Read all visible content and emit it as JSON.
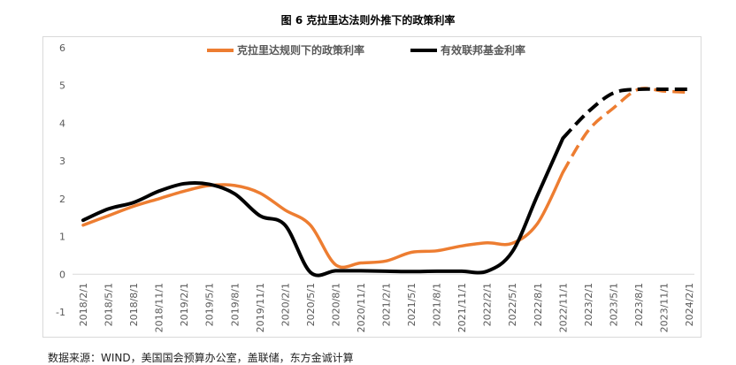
{
  "chart_data": {
    "type": "line",
    "title": "图 6  克拉里达法则外推下的政策利率",
    "xlabel": "",
    "ylabel": "",
    "ylim": [
      -1,
      6
    ],
    "y_ticks": [
      -1,
      0,
      1,
      2,
      3,
      4,
      5,
      6
    ],
    "x_tick_labels": [
      "2018/2/1",
      "2018/5/1",
      "2018/8/1",
      "2018/11/1",
      "2019/2/1",
      "2019/5/1",
      "2019/8/1",
      "2019/11/1",
      "2020/2/1",
      "2020/5/1",
      "2020/8/1",
      "2020/11/1",
      "2021/2/1",
      "2021/5/1",
      "2021/8/1",
      "2021/11/1",
      "2022/2/1",
      "2022/5/1",
      "2022/8/1",
      "2022/11/1",
      "2023/2/1",
      "2023/5/1",
      "2023/8/1",
      "2023/11/1",
      "2024/2/1"
    ],
    "grid": false,
    "legend_position": "top",
    "series": [
      {
        "name": "克拉里达规则下的政策利率",
        "color": "#ED7D31",
        "solid_until_index": 19,
        "values": [
          1.3,
          1.55,
          1.8,
          2.0,
          2.2,
          2.35,
          2.35,
          2.15,
          1.7,
          1.3,
          0.25,
          0.3,
          0.35,
          0.58,
          0.62,
          0.75,
          0.83,
          0.82,
          1.35,
          2.7,
          3.8,
          4.4,
          4.9,
          4.85,
          4.82
        ]
      },
      {
        "name": "有效联邦基金利率",
        "color": "#000000",
        "solid_until_index": 19,
        "values": [
          1.43,
          1.73,
          1.9,
          2.2,
          2.4,
          2.38,
          2.13,
          1.55,
          1.3,
          0.05,
          0.09,
          0.09,
          0.08,
          0.07,
          0.08,
          0.08,
          0.08,
          0.6,
          2.1,
          3.6,
          4.3,
          4.8,
          4.9,
          4.9,
          4.9
        ]
      }
    ]
  },
  "source_text": "数据来源：WIND，美国国会预算办公室，盖联储，东方金诚计算"
}
